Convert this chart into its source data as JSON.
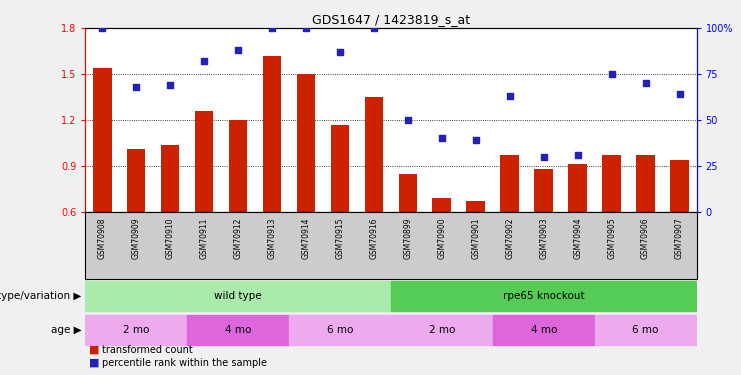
{
  "title": "GDS1647 / 1423819_s_at",
  "samples": [
    "GSM70908",
    "GSM70909",
    "GSM70910",
    "GSM70911",
    "GSM70912",
    "GSM70913",
    "GSM70914",
    "GSM70915",
    "GSM70916",
    "GSM70899",
    "GSM70900",
    "GSM70901",
    "GSM70902",
    "GSM70903",
    "GSM70904",
    "GSM70905",
    "GSM70906",
    "GSM70907"
  ],
  "transformed_count": [
    1.54,
    1.01,
    1.04,
    1.26,
    1.2,
    1.62,
    1.5,
    1.17,
    1.35,
    0.85,
    0.69,
    0.67,
    0.97,
    0.88,
    0.91,
    0.97,
    0.97,
    0.94
  ],
  "percentile_rank": [
    100,
    68,
    69,
    82,
    88,
    100,
    100,
    87,
    100,
    50,
    40,
    39,
    63,
    30,
    31,
    75,
    70,
    64
  ],
  "bar_color": "#cc2200",
  "dot_color": "#2222bb",
  "ylim_left": [
    0.6,
    1.8
  ],
  "ylim_right": [
    0,
    100
  ],
  "yticks_left": [
    0.6,
    0.9,
    1.2,
    1.5,
    1.8
  ],
  "yticks_right": [
    0,
    25,
    50,
    75,
    100
  ],
  "ytick_labels_right": [
    "0",
    "25",
    "50",
    "75",
    "100%"
  ],
  "groups": [
    {
      "label": "wild type",
      "color": "#aaeaaa",
      "start": 0,
      "end": 8
    },
    {
      "label": "rpe65 knockout",
      "color": "#55cc55",
      "start": 9,
      "end": 17
    }
  ],
  "age_groups": [
    {
      "label": "2 mo",
      "color": "#eeaaee",
      "start": 0,
      "end": 2
    },
    {
      "label": "4 mo",
      "color": "#dd66dd",
      "start": 3,
      "end": 5
    },
    {
      "label": "6 mo",
      "color": "#eeaaee",
      "start": 6,
      "end": 8
    },
    {
      "label": "2 mo",
      "color": "#eeaaee",
      "start": 9,
      "end": 11
    },
    {
      "label": "4 mo",
      "color": "#dd66dd",
      "start": 12,
      "end": 14
    },
    {
      "label": "6 mo",
      "color": "#eeaaee",
      "start": 15,
      "end": 17
    }
  ],
  "genotype_label": "genotype/variation",
  "age_label": "age",
  "legend_bar": "transformed count",
  "legend_dot": "percentile rank within the sample",
  "fig_bg": "#f0f0f0",
  "tick_bg": "#cccccc",
  "plot_bg": "#ffffff"
}
